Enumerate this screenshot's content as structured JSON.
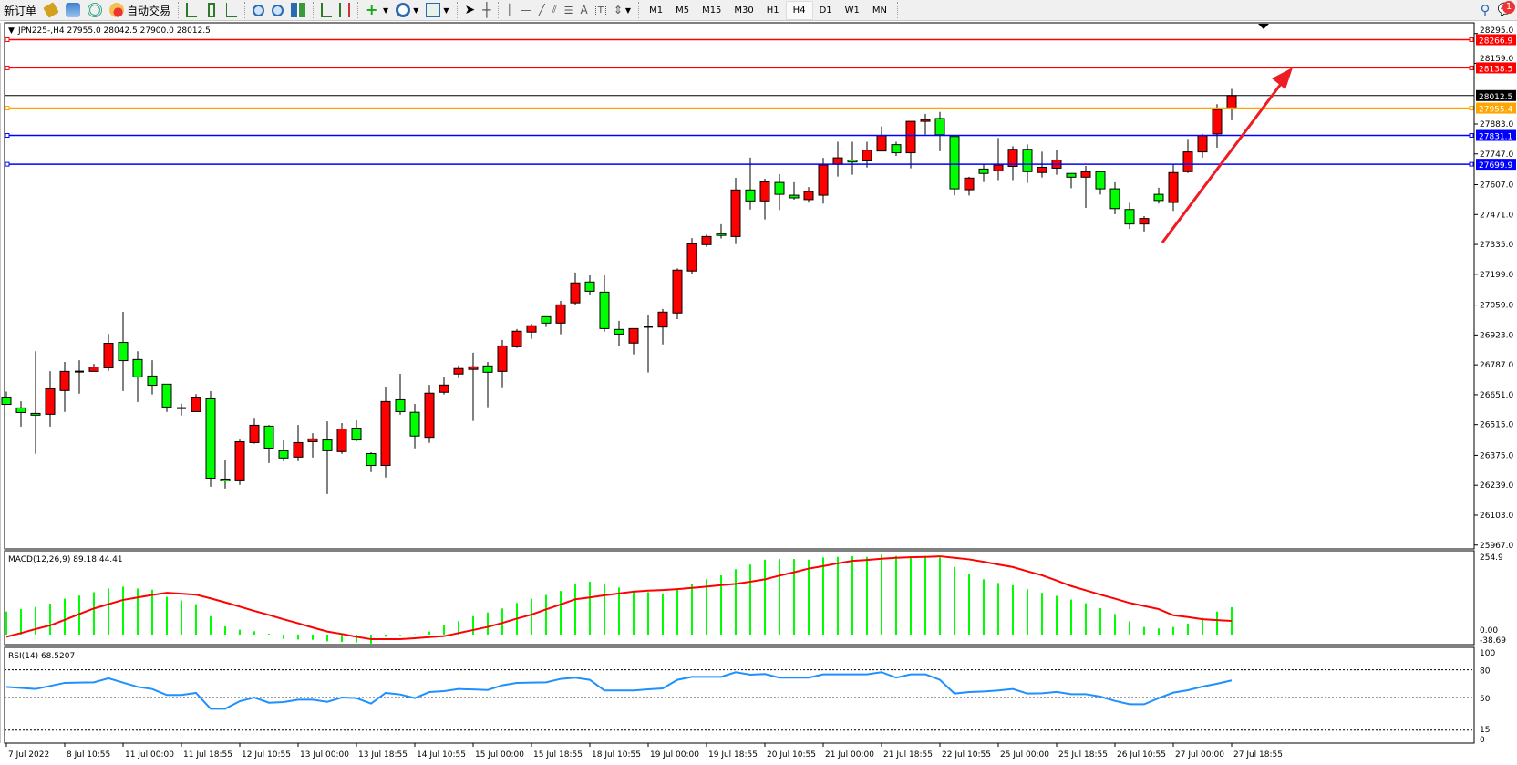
{
  "toolbar": {
    "new_order": "新订单",
    "auto_trading": "自动交易",
    "timeframes": [
      "M1",
      "M5",
      "M15",
      "M30",
      "H1",
      "H4",
      "D1",
      "W1",
      "MN"
    ],
    "active_timeframe": "H4",
    "notification_count": "1"
  },
  "chart": {
    "header": "JPN225-,H4  27955.0 28042.5 27900.0 28012.5",
    "symbol": "JPN225-",
    "timeframe": "H4",
    "up_color": "#ff0000",
    "down_color": "#00ff00",
    "price_ticks": [
      "28295.0",
      "28159.0",
      "27883.0",
      "27747.0",
      "27607.0",
      "27471.0",
      "27335.0",
      "27199.0",
      "27059.0",
      "26923.0",
      "26787.0",
      "26651.0",
      "26515.0",
      "26375.0",
      "26239.0",
      "26103.0",
      "25967.0"
    ],
    "levels": [
      {
        "price": 28266.9,
        "label": "28266.9",
        "color": "#ff0000"
      },
      {
        "price": 28138.5,
        "label": "28138.5",
        "color": "#ff0000"
      },
      {
        "price": 27955.4,
        "label": "27955.4",
        "color": "#ffa500"
      },
      {
        "price": 27831.1,
        "label": "27831.1",
        "color": "#0000ff"
      },
      {
        "price": 27699.9,
        "label": "27699.9",
        "color": "#0000ff"
      }
    ],
    "bid": {
      "price": 28012.5,
      "label": "28012.5",
      "color": "#000000"
    },
    "date_labels": [
      "7 Jul 2022",
      "8 Jul 10:55",
      "11 Jul 00:00",
      "11 Jul 18:55",
      "12 Jul 10:55",
      "13 Jul 00:00",
      "13 Jul 18:55",
      "14 Jul 10:55",
      "15 Jul 00:00",
      "15 Jul 18:55",
      "18 Jul 10:55",
      "19 Jul 00:00",
      "19 Jul 18:55",
      "20 Jul 10:55",
      "21 Jul 00:00",
      "21 Jul 18:55",
      "22 Jul 10:55",
      "25 Jul 00:00",
      "25 Jul 18:55",
      "26 Jul 10:55",
      "27 Jul 00:00",
      "27 Jul 18:55"
    ],
    "arrow_color": "#ee1c24"
  },
  "chart_data": {
    "type": "candlestick",
    "ohlc": [
      [
        26640,
        26665,
        26607,
        26607
      ],
      [
        26591,
        26621,
        26506,
        26570
      ],
      [
        26566,
        26849,
        26382,
        26558
      ],
      [
        26562,
        26758,
        26506,
        26678
      ],
      [
        26670,
        26800,
        26573,
        26757
      ],
      [
        26754,
        26808,
        26656,
        26756
      ],
      [
        26757,
        26791,
        26757,
        26777
      ],
      [
        26773,
        26928,
        26759,
        26885
      ],
      [
        26889,
        27028,
        26668,
        26806
      ],
      [
        26811,
        26849,
        26618,
        26732
      ],
      [
        26736,
        26808,
        26652,
        26694
      ],
      [
        26699,
        26699,
        26573,
        26595
      ],
      [
        26590,
        26610,
        26556,
        26588
      ],
      [
        26574,
        26654,
        26574,
        26640
      ],
      [
        26632,
        26667,
        26232,
        26271
      ],
      [
        26267,
        26356,
        26224,
        26259
      ],
      [
        26263,
        26447,
        26241,
        26437
      ],
      [
        26433,
        26546,
        26428,
        26512
      ],
      [
        26508,
        26513,
        26340,
        26408
      ],
      [
        26396,
        26443,
        26349,
        26363
      ],
      [
        26367,
        26513,
        26349,
        26433
      ],
      [
        26437,
        26476,
        26365,
        26450
      ],
      [
        26445,
        26530,
        26199,
        26396
      ],
      [
        26392,
        26522,
        26382,
        26495
      ],
      [
        26499,
        26534,
        26440,
        26445
      ],
      [
        26383,
        26389,
        26299,
        26329
      ],
      [
        26329,
        26688,
        26274,
        26620
      ],
      [
        26628,
        26746,
        26560,
        26574
      ],
      [
        26571,
        26609,
        26407,
        26463
      ],
      [
        26457,
        26696,
        26432,
        26658
      ],
      [
        26662,
        26730,
        26652,
        26695
      ],
      [
        26745,
        26784,
        26726,
        26770
      ],
      [
        26766,
        26842,
        26532,
        26778
      ],
      [
        26782,
        26800,
        26594,
        26753
      ],
      [
        26757,
        26900,
        26685,
        26873
      ],
      [
        26869,
        26950,
        26864,
        26940
      ],
      [
        26936,
        26974,
        26905,
        26965
      ],
      [
        27006,
        27006,
        26959,
        26977
      ],
      [
        26977,
        27078,
        26926,
        27060
      ],
      [
        27069,
        27207,
        27059,
        27160
      ],
      [
        27164,
        27194,
        27104,
        27122
      ],
      [
        27118,
        27194,
        26938,
        26952
      ],
      [
        26948,
        26987,
        26872,
        26927
      ],
      [
        26886,
        26952,
        26835,
        26952
      ],
      [
        26958,
        27012,
        26752,
        26960
      ],
      [
        26959,
        27041,
        26880,
        27027
      ],
      [
        27023,
        27226,
        26995,
        27218
      ],
      [
        27214,
        27364,
        27200,
        27338
      ],
      [
        27334,
        27380,
        27324,
        27371
      ],
      [
        27384,
        27427,
        27362,
        27376
      ],
      [
        27371,
        27638,
        27337,
        27583
      ],
      [
        27583,
        27730,
        27494,
        27533
      ],
      [
        27533,
        27634,
        27449,
        27620
      ],
      [
        27617,
        27655,
        27492,
        27563
      ],
      [
        27559,
        27618,
        27539,
        27547
      ],
      [
        27539,
        27596,
        27525,
        27576
      ],
      [
        27559,
        27729,
        27521,
        27696
      ],
      [
        27700,
        27802,
        27644,
        27729
      ],
      [
        27719,
        27802,
        27652,
        27710
      ],
      [
        27715,
        27802,
        27685,
        27764
      ],
      [
        27760,
        27872,
        27760,
        27830
      ],
      [
        27789,
        27802,
        27738,
        27752
      ],
      [
        27752,
        27895,
        27681,
        27895
      ],
      [
        27895,
        27929,
        27834,
        27903
      ],
      [
        27908,
        27938,
        27759,
        27834
      ],
      [
        27826,
        27826,
        27558,
        27588
      ],
      [
        27584,
        27643,
        27558,
        27637
      ],
      [
        27678,
        27700,
        27619,
        27658
      ],
      [
        27670,
        27819,
        27628,
        27696
      ],
      [
        27690,
        27782,
        27628,
        27768
      ],
      [
        27768,
        27790,
        27615,
        27666
      ],
      [
        27662,
        27757,
        27640,
        27686
      ],
      [
        27682,
        27765,
        27652,
        27719
      ],
      [
        27658,
        27658,
        27591,
        27641
      ],
      [
        27641,
        27692,
        27501,
        27666
      ],
      [
        27666,
        27670,
        27562,
        27588
      ],
      [
        27588,
        27618,
        27472,
        27498
      ],
      [
        27494,
        27524,
        27406,
        27428
      ],
      [
        27428,
        27464,
        27394,
        27453
      ],
      [
        27563,
        27593,
        27521,
        27535
      ],
      [
        27526,
        27699,
        27488,
        27662
      ],
      [
        27666,
        27815,
        27660,
        27756
      ],
      [
        27756,
        27838,
        27730,
        27830
      ],
      [
        27838,
        27973,
        27775,
        27949
      ],
      [
        27955.0,
        28042.5,
        27900.0,
        28012.5
      ]
    ],
    "price_range": [
      25967,
      28295
    ],
    "macd": {
      "label": "MACD(12,26,9) 89.18 44.41",
      "axis_labels": [
        "254.9",
        "0.00",
        "-38.69"
      ],
      "range": [
        -38.69,
        254.9
      ],
      "main_color": "#00ff00",
      "signal_color": "#ff0000",
      "main": [
        75,
        83,
        90,
        101,
        117,
        127,
        138,
        150,
        156,
        150,
        146,
        123,
        111,
        99,
        60,
        27,
        16,
        11,
        3,
        -14,
        -16,
        -17,
        -22,
        -24,
        -26,
        -29,
        -7,
        -2,
        1,
        10,
        30,
        44,
        60,
        72,
        85,
        103,
        117,
        129,
        142,
        163,
        172,
        165,
        153,
        143,
        138,
        133,
        148,
        165,
        180,
        193,
        213,
        228,
        244,
        246,
        246,
        244,
        251,
        253,
        255,
        253,
        260,
        256,
        255,
        256,
        251,
        220,
        199,
        180,
        168,
        161,
        148,
        136,
        126,
        114,
        102,
        86,
        67,
        43,
        25,
        20,
        25,
        36,
        55,
        75,
        89.18
      ],
      "signal": [
        -7,
        5,
        18,
        30,
        48,
        67,
        85,
        99,
        113,
        121,
        129,
        136,
        133,
        130,
        118,
        105,
        91,
        77,
        64,
        50,
        37,
        23,
        10,
        2,
        -7,
        -15,
        -15,
        -15,
        -12,
        -8,
        -5,
        5,
        15,
        25,
        38,
        52,
        65,
        82,
        98,
        115,
        121,
        128,
        134,
        140,
        143,
        145,
        148,
        152,
        156,
        161,
        165,
        172,
        180,
        192,
        203,
        215,
        223,
        232,
        240,
        243,
        247,
        250,
        252,
        253,
        255,
        250,
        245,
        237,
        228,
        220,
        206,
        193,
        176,
        158,
        144,
        130,
        117,
        103,
        93,
        83,
        63,
        57,
        50,
        47,
        44.41
      ]
    },
    "rsi": {
      "label": "RSI(14) 68.5207",
      "levels": [
        80,
        50,
        15
      ],
      "axis_labels": [
        "100",
        "80",
        "50",
        "15",
        "0"
      ],
      "range": [
        0,
        100
      ],
      "color": "#1e90ff",
      "values": [
        61.6,
        60.5,
        59.3,
        62.6,
        65.9,
        66.2,
        66.5,
        70.8,
        66.2,
        61.6,
        59.3,
        52.8,
        52.8,
        55.1,
        38,
        38,
        46.2,
        50.1,
        44.5,
        45.2,
        47.8,
        47.8,
        45.5,
        50.1,
        49.5,
        43.6,
        55.1,
        53.4,
        49.5,
        56,
        57,
        59.3,
        58.8,
        58.3,
        63.3,
        65.9,
        66.2,
        66.5,
        70.2,
        71.5,
        69.2,
        57.7,
        57.7,
        57.7,
        59,
        60,
        69.2,
        72.4,
        72.4,
        72.4,
        77.4,
        74.7,
        75.4,
        71.5,
        71.5,
        71.5,
        75.1,
        75.1,
        75.1,
        75.1,
        77.4,
        71.5,
        75.1,
        75.1,
        69.2,
        54.4,
        56,
        56.7,
        57.7,
        59.3,
        54.4,
        54.7,
        56.2,
        53.7,
        53.7,
        51.1,
        46.5,
        42.9,
        42.9,
        49.5,
        55.4,
        58,
        61.9,
        65,
        68.5207
      ]
    }
  }
}
